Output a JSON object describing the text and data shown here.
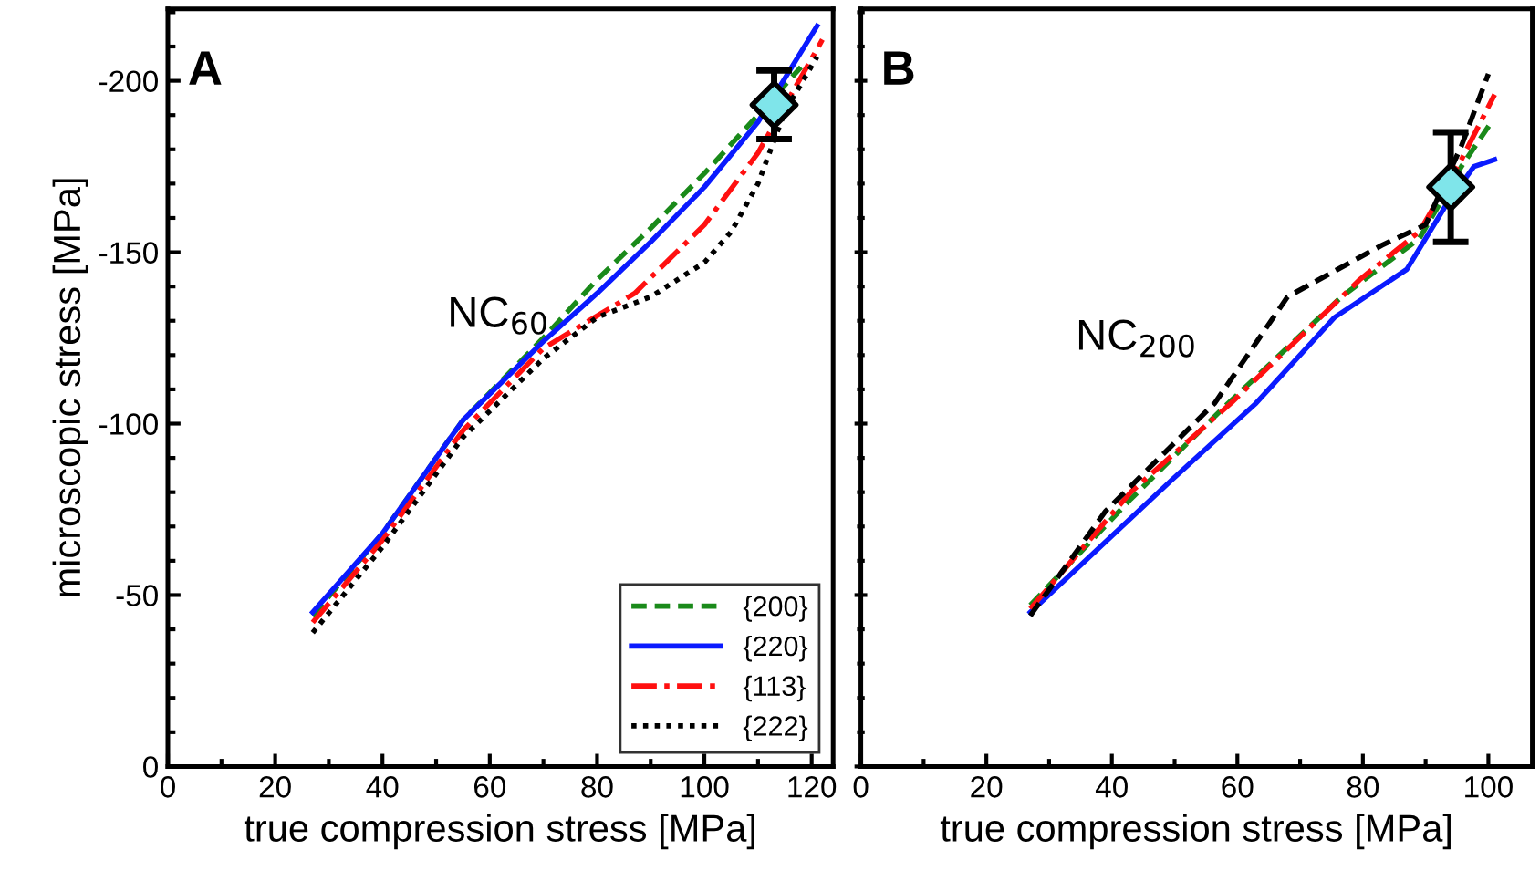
{
  "chart_data": [
    {
      "type": "line",
      "xlabel": "true compression stress [MPa]",
      "ylabel": "microscopic stress [MPa]",
      "xlim": [
        0,
        124
      ],
      "xticks": [
        0,
        20,
        40,
        60,
        80,
        100,
        120
      ],
      "ylim": [
        0,
        -221
      ],
      "yticks": [
        0,
        -50,
        -100,
        -150,
        -200
      ],
      "annotations": [
        "A",
        "NC$_{60}$"
      ],
      "legend": "bottom right",
      "grid": false,
      "series": [
        {
          "name": "{200}",
          "color": "#1a8a1a",
          "line_style": "dashed",
          "x": [
            27,
            40,
            55,
            70,
            80,
            90,
            100,
            110,
            118
          ],
          "values": [
            -44,
            -68,
            -101,
            -125,
            -142,
            -157,
            -173,
            -190,
            -204
          ]
        },
        {
          "name": "{220}",
          "color": "#0a1aff",
          "line_style": "solid",
          "x": [
            27,
            40,
            55,
            70,
            80,
            90,
            100,
            110,
            121
          ],
          "values": [
            -45,
            -68,
            -101,
            -124,
            -138,
            -153,
            -169,
            -188,
            -216
          ]
        },
        {
          "name": "{113}",
          "color": "#ff1010",
          "line_style": "dashdot",
          "x": [
            27,
            40,
            55,
            70,
            87,
            100,
            110,
            122
          ],
          "values": [
            -42,
            -66,
            -98,
            -122,
            -138,
            -158,
            -179,
            -212
          ]
        },
        {
          "name": "{222}",
          "color": "#000000",
          "line_style": "dotted",
          "x": [
            27,
            40,
            55,
            70,
            80,
            90,
            100,
            105,
            110,
            115,
            121
          ],
          "values": [
            -39,
            -64,
            -96,
            -119,
            -131,
            -137,
            -147,
            -156,
            -170,
            -191,
            -207
          ]
        },
        {
          "type": "scatter",
          "color": "#7fe5ea",
          "marker": "diamond",
          "x": [
            113
          ],
          "values": [
            -193
          ],
          "errors": [
            10
          ]
        }
      ]
    },
    {
      "type": "line",
      "xlabel": "true compression stress [MPa]",
      "xlim": [
        0,
        107
      ],
      "xticks": [
        0,
        20,
        40,
        60,
        80,
        100
      ],
      "ylim": [
        0,
        -221
      ],
      "yticks": [
        0,
        -50,
        -100,
        -150,
        -200
      ],
      "tick_labels": "x",
      "annotations": [
        "B",
        "NC$_{200}$"
      ],
      "grid": false,
      "series": [
        {
          "color": "#1a8a1a",
          "line_style": "dashed",
          "x": [
            27,
            43,
            58,
            76.6,
            89,
            95.7,
            100.5
          ],
          "values": [
            -47,
            -78,
            -105,
            -137,
            -154,
            -175,
            -188
          ]
        },
        {
          "color": "#0a1aff",
          "line_style": "solid",
          "x": [
            27,
            49.5,
            63,
            75.5,
            87,
            93,
            97.7,
            101
          ],
          "values": [
            -45,
            -83.5,
            -106,
            -131,
            -145,
            -163,
            -175,
            -177
          ]
        },
        {
          "color": "#ff1010",
          "line_style": "dashdot",
          "x": [
            27,
            43,
            59,
            79.5,
            89,
            95.7,
            101
          ],
          "values": [
            -46,
            -80,
            -106,
            -142,
            -156,
            -177,
            -196
          ]
        },
        {
          "color": "#000000",
          "line_style": "dashed",
          "x": [
            27,
            39,
            56.4,
            68,
            83,
            90,
            95.7,
            100
          ],
          "values": [
            -44,
            -74.5,
            -106,
            -137,
            -152,
            -158,
            -181,
            -202
          ]
        },
        {
          "type": "scatter",
          "color": "#7fe5ea",
          "marker": "diamond",
          "x": [
            94
          ],
          "values": [
            -169
          ],
          "errors": [
            16
          ]
        }
      ]
    }
  ]
}
